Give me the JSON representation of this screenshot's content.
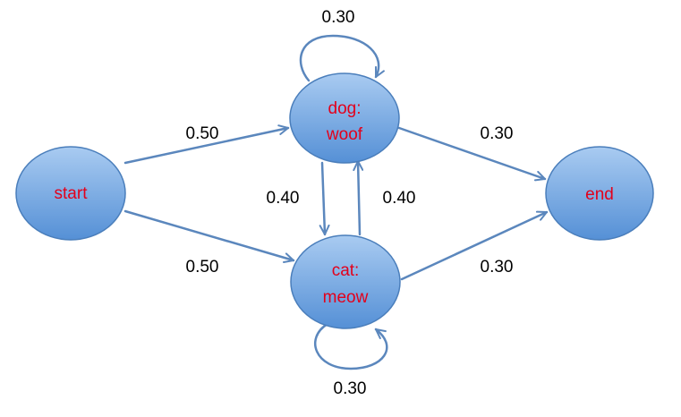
{
  "colors": {
    "node_fill_top": "#a9cbf1",
    "node_fill_bottom": "#5590d6",
    "node_stroke": "#4a7ebb",
    "node_text": "#e3001b",
    "edge": "#5b87bd"
  },
  "nodes": {
    "start": {
      "label": "start"
    },
    "dog": {
      "line1": "dog:",
      "line2": "woof"
    },
    "cat": {
      "line1": "cat:",
      "line2": "meow"
    },
    "end": {
      "label": "end"
    }
  },
  "edges": {
    "start_to_dog": "0.50",
    "start_to_cat": "0.50",
    "dog_self": "0.30",
    "cat_self": "0.30",
    "dog_to_cat": "0.40",
    "cat_to_dog": "0.40",
    "dog_to_end": "0.30",
    "cat_to_end": "0.30"
  }
}
